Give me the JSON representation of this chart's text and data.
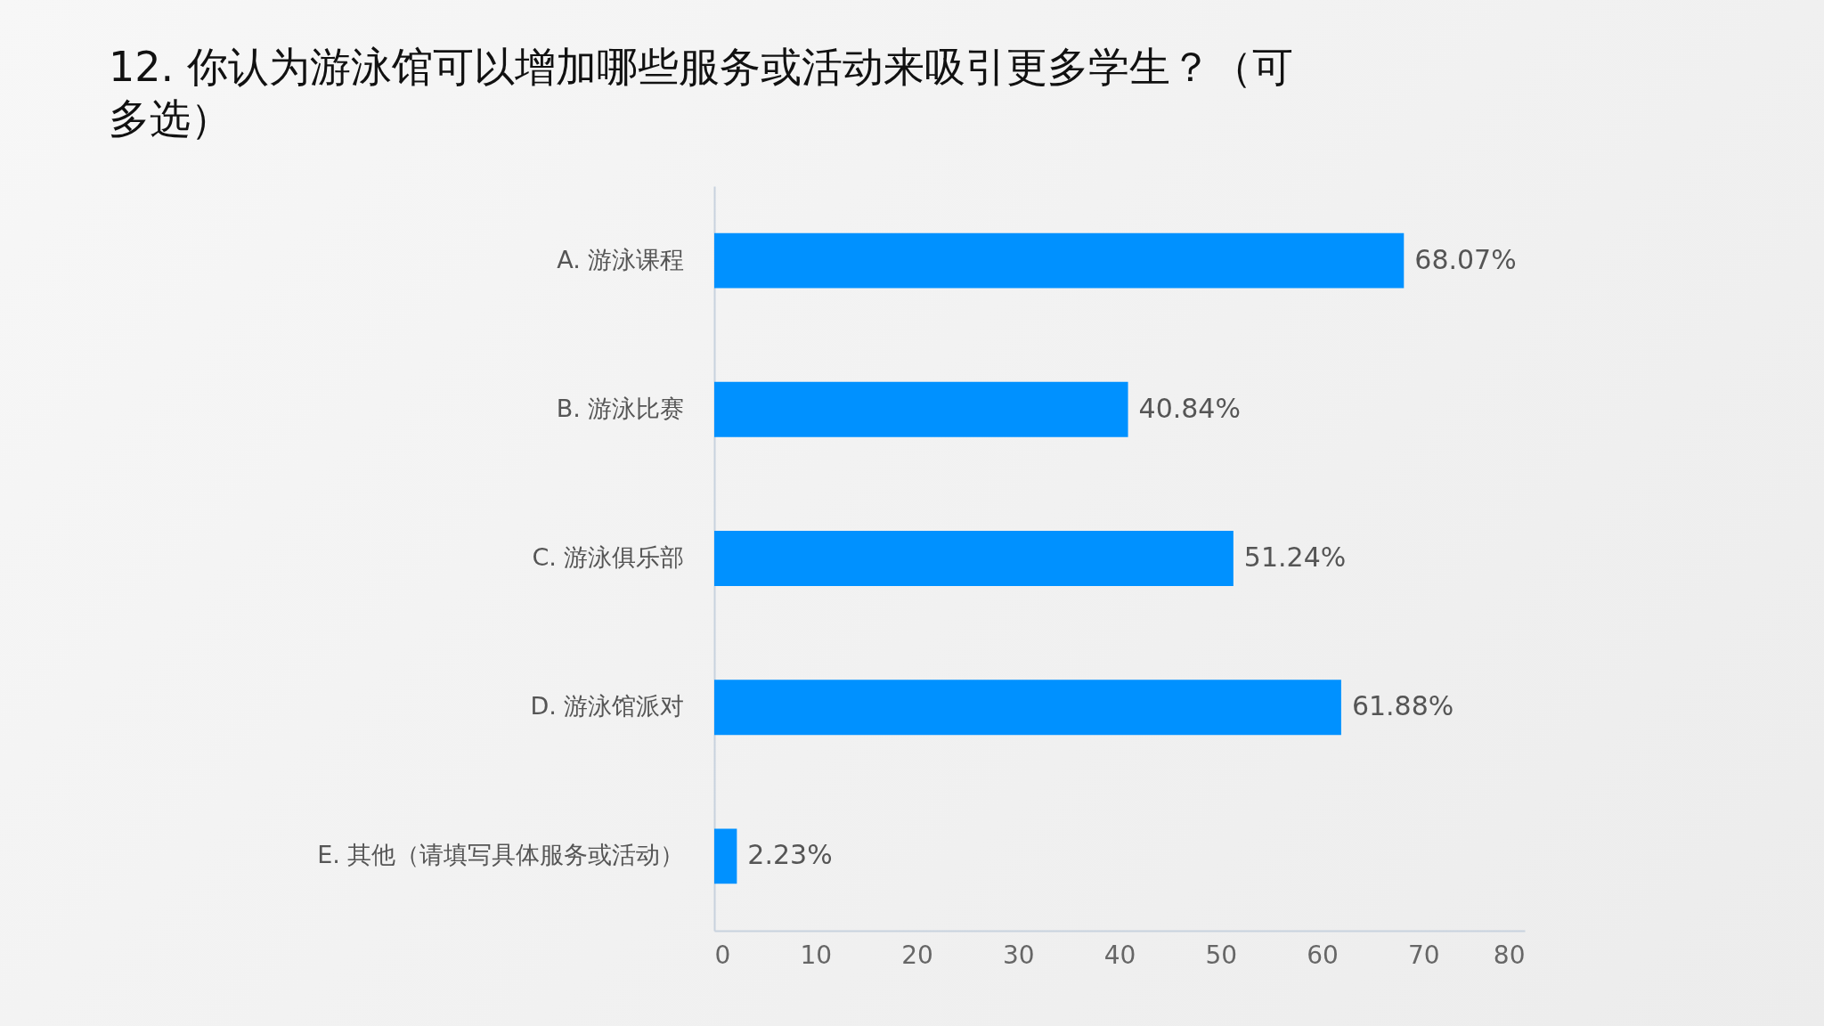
{
  "chart_data": {
    "type": "bar",
    "orientation": "horizontal",
    "title": "12. 你认为游泳馆可以增加哪些服务或活动来吸引更多学生？（可多选）",
    "categories": [
      "A. 游泳课程",
      "B. 游泳比赛",
      "C. 游泳俱乐部",
      "D. 游泳馆派对",
      "E. 其他（请填写具体服务或活动）"
    ],
    "values": [
      68.07,
      40.84,
      51.24,
      61.88,
      2.23
    ],
    "value_labels": [
      "68.07%",
      "40.84%",
      "51.24%",
      "61.88%",
      "2.23%"
    ],
    "color": "#0091ff",
    "xlim": [
      0,
      80
    ],
    "xticks": [
      0,
      10,
      20,
      30,
      40,
      50,
      60,
      70,
      80
    ],
    "grid": false
  }
}
